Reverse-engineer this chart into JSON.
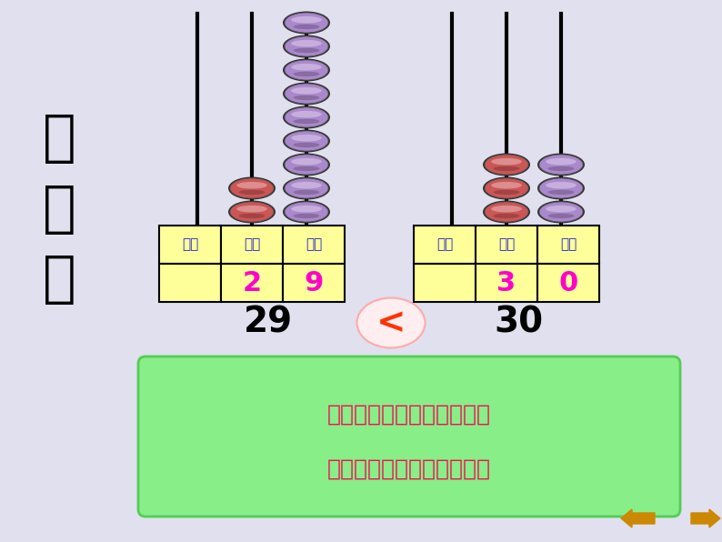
{
  "bg_color": "#e0e0ee",
  "col_labels": [
    "百位",
    "十位",
    "个位"
  ],
  "table1_vals": [
    "",
    "2",
    "9"
  ],
  "table2_vals": [
    "",
    "3",
    "0"
  ],
  "label_color": "#2222cc",
  "digit_color": "#ff00cc",
  "table_bg": "#ffff99",
  "num1": "29",
  "num2": "30",
  "compare_symbol": "<",
  "box_text1": "两位数比大小，先比十位，",
  "box_text2": "十位上的数大这个数就大。",
  "box_bg": "#88ee88",
  "box_text_color": "#ee1155",
  "title_text": "比\n一\n比",
  "bead_color_red": "#cc5555",
  "bead_color_purple": "#aa88cc",
  "nav_color": "#cc8800"
}
